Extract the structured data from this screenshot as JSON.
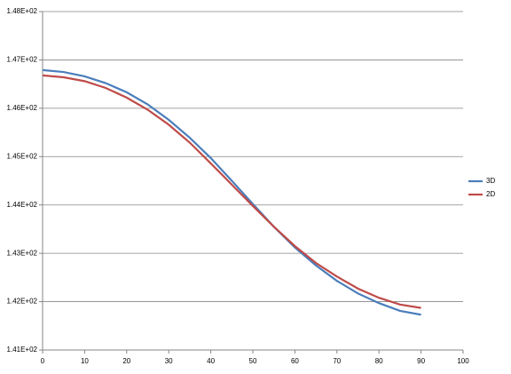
{
  "chart_data": {
    "type": "line",
    "x": [
      0,
      5,
      10,
      15,
      20,
      25,
      30,
      35,
      40,
      45,
      50,
      55,
      60,
      65,
      70,
      75,
      80,
      85,
      90
    ],
    "series": [
      {
        "name": "3D",
        "color": "#4a7ebb",
        "values": [
          146.79,
          146.75,
          146.66,
          146.52,
          146.33,
          146.08,
          145.76,
          145.39,
          144.97,
          144.5,
          144.02,
          143.55,
          143.12,
          142.75,
          142.43,
          142.17,
          141.97,
          141.81,
          141.73
        ]
      },
      {
        "name": "2D",
        "color": "#be4b48",
        "values": [
          146.68,
          146.64,
          146.56,
          146.42,
          146.22,
          145.97,
          145.66,
          145.29,
          144.86,
          144.42,
          143.98,
          143.55,
          143.15,
          142.8,
          142.52,
          142.27,
          142.08,
          141.94,
          141.87
        ]
      }
    ],
    "xlim": [
      0,
      100
    ],
    "xticks": [
      0,
      10,
      20,
      30,
      40,
      50,
      60,
      70,
      80,
      90,
      100
    ],
    "ylim": [
      141,
      148
    ],
    "yticks": [
      {
        "value": 141,
        "label": "1.41E+02"
      },
      {
        "value": 142,
        "label": "1.42E+02"
      },
      {
        "value": 143,
        "label": "1.43E+02"
      },
      {
        "value": 144,
        "label": "1.44E+02"
      },
      {
        "value": 145,
        "label": "1.45E+02"
      },
      {
        "value": 146,
        "label": "1.46E+02"
      },
      {
        "value": 147,
        "label": "1.47E+02"
      },
      {
        "value": 148,
        "label": "1.48E+02"
      }
    ],
    "grid": true,
    "legend": "right"
  }
}
